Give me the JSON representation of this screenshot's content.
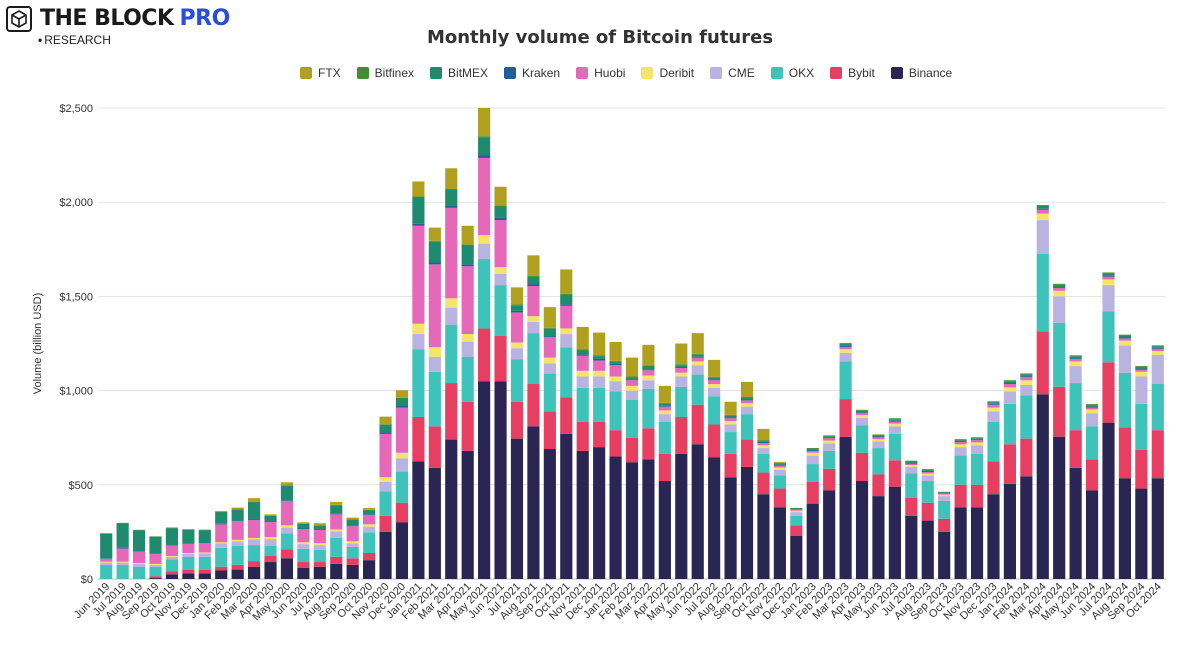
{
  "brand": {
    "name": "THE BLOCK",
    "pro": "PRO",
    "sub": "RESEARCH"
  },
  "colors": {
    "FTX": "#b0a020",
    "Bitfinex": "#3f8f2e",
    "BitMEX": "#1e8a6e",
    "Kraken": "#1f5f96",
    "Huobi": "#e668b8",
    "Deribit": "#f5e46a",
    "CME": "#b9b3e2",
    "OKX": "#3ec3bb",
    "Bybit": "#e63f62",
    "Binance": "#2b2554"
  },
  "chart_data": {
    "type": "bar",
    "stacked": true,
    "title": "Monthly volume of Bitcoin futures",
    "ylabel": "Volume (billion USD)",
    "ylim": [
      0,
      2500
    ],
    "yticks": [
      "$0",
      "$500",
      "$1,000",
      "$1,500",
      "$2,000",
      "$2,500"
    ],
    "grid": true,
    "legend_position": "top",
    "legend_order": [
      "FTX",
      "Bitfinex",
      "BitMEX",
      "Kraken",
      "Huobi",
      "Deribit",
      "CME",
      "OKX",
      "Bybit",
      "Binance"
    ],
    "categories": [
      "Jun 2019",
      "Jul 2019",
      "Aug 2019",
      "Sep 2019",
      "Oct 2019",
      "Nov 2019",
      "Dec 2019",
      "Jan 2020",
      "Feb 2020",
      "Mar 2020",
      "Apr 2020",
      "May 2020",
      "Jun 2020",
      "Jul 2020",
      "Aug 2020",
      "Sep 2020",
      "Oct 2020",
      "Nov 2020",
      "Dec 2020",
      "Jan 2021",
      "Feb 2021",
      "Mar 2021",
      "Apr 2021",
      "May 2021",
      "Jun 2021",
      "Jul 2021",
      "Aug 2021",
      "Sep 2021",
      "Oct 2021",
      "Nov 2021",
      "Dec 2021",
      "Jan 2022",
      "Feb 2022",
      "Mar 2022",
      "Apr 2022",
      "May 2022",
      "Jun 2022",
      "Jul 2022",
      "Aug 2022",
      "Sep 2022",
      "Oct 2022",
      "Nov 2022",
      "Dec 2022",
      "Jan 2023",
      "Feb 2023",
      "Mar 2023",
      "Apr 2023",
      "May 2023",
      "Jun 2023",
      "Jul 2023",
      "Aug 2023",
      "Sep 2023",
      "Oct 2023",
      "Nov 2023",
      "Dec 2023",
      "Jan 2024",
      "Feb 2024",
      "Mar 2024",
      "Apr 2024",
      "May 2024",
      "Jun 2024",
      "Jul 2024",
      "Aug 2024",
      "Sep 2024",
      "Oct 2024"
    ],
    "xtick_labels": [
      "Jun 2019",
      "Jul 2019",
      "Aug 2019",
      "Sep 2019",
      "Oct 2019",
      "Nov 2019",
      "Dec 2019",
      "Jan 2020",
      "Feb 2020",
      "Mar 2020",
      "Apr 2020",
      "May 2020",
      "Jun 2020",
      "Jul 2020",
      "Aug 2020",
      "Sep 2020",
      "Oct 2020",
      "Nov 2020",
      "Dec 2020",
      "Jan 2021",
      "Feb 2021",
      "Mar 2021",
      "Apr 2021",
      "May 2021",
      "Jun 2021",
      "Jul 2021",
      "Aug 2021",
      "Sep 2021",
      "Oct 2021",
      "Nov 2021",
      "Dec 2021",
      "Jan 2022",
      "Feb 2022",
      "Mar 2022",
      "Apr 2022",
      "May 2022",
      "Jun 2022",
      "Jul 2022",
      "Aug 2022",
      "Sep 2022",
      "Oct 2022",
      "Nov 2022",
      "Dec 2022",
      "Jan 2023",
      "Feb 2023",
      "Mar 2023",
      "Apr 2023",
      "May 2023",
      "Jun 2023",
      "Jul 2023",
      "Aug 2023",
      "Sep 2023",
      "Oct 2023",
      "Nov 2023",
      "Dec 2023",
      "Jan 2024",
      "Feb 2024",
      "Mar 2024",
      "Apr 2024",
      "May 2024",
      "Jun 2024",
      "Jul 2024",
      "Aug 2024",
      "Sep 2024",
      "Oct 2024"
    ],
    "series": [
      {
        "name": "Binance",
        "values": [
          0,
          0,
          0,
          5,
          25,
          30,
          30,
          45,
          50,
          65,
          90,
          110,
          60,
          65,
          80,
          75,
          100,
          250,
          300,
          625,
          590,
          740,
          680,
          1050,
          1050,
          745,
          810,
          690,
          770,
          680,
          700,
          650,
          620,
          635,
          520,
          665,
          715,
          645,
          540,
          595,
          450,
          380,
          230,
          400,
          470,
          755,
          520,
          440,
          490,
          335,
          310,
          250,
          380,
          380,
          450,
          505,
          545,
          980,
          755,
          590,
          470,
          830,
          535,
          480,
          535
        ]
      },
      {
        "name": "Bybit",
        "values": [
          0,
          0,
          0,
          10,
          15,
          18,
          18,
          20,
          25,
          30,
          32,
          48,
          30,
          25,
          38,
          35,
          38,
          85,
          105,
          235,
          220,
          300,
          260,
          280,
          240,
          195,
          225,
          200,
          195,
          155,
          135,
          140,
          130,
          165,
          145,
          195,
          210,
          175,
          125,
          145,
          115,
          100,
          55,
          115,
          115,
          200,
          150,
          115,
          140,
          95,
          95,
          70,
          120,
          120,
          175,
          210,
          200,
          335,
          265,
          200,
          165,
          320,
          270,
          205,
          255
        ]
      },
      {
        "name": "OKX",
        "values": [
          75,
          75,
          65,
          50,
          65,
          70,
          70,
          100,
          100,
          85,
          55,
          85,
          70,
          65,
          100,
          60,
          110,
          130,
          165,
          360,
          290,
          310,
          240,
          370,
          270,
          225,
          270,
          200,
          265,
          180,
          180,
          205,
          200,
          210,
          170,
          160,
          160,
          150,
          115,
          135,
          100,
          70,
          50,
          95,
          95,
          200,
          145,
          140,
          140,
          130,
          115,
          95,
          155,
          165,
          210,
          215,
          230,
          410,
          340,
          250,
          175,
          270,
          290,
          245,
          245
        ]
      },
      {
        "name": "CME",
        "values": [
          12,
          12,
          15,
          10,
          12,
          15,
          18,
          25,
          25,
          30,
          35,
          30,
          25,
          25,
          35,
          20,
          30,
          50,
          70,
          80,
          80,
          90,
          80,
          80,
          60,
          60,
          60,
          55,
          70,
          60,
          60,
          55,
          50,
          45,
          40,
          55,
          50,
          45,
          40,
          40,
          30,
          30,
          20,
          45,
          40,
          45,
          40,
          35,
          40,
          35,
          30,
          25,
          45,
          45,
          55,
          65,
          55,
          180,
          140,
          90,
          70,
          140,
          145,
          145,
          155
        ]
      },
      {
        "name": "Deribit",
        "values": [
          5,
          5,
          5,
          5,
          5,
          5,
          5,
          5,
          8,
          8,
          10,
          12,
          10,
          10,
          10,
          10,
          12,
          25,
          30,
          55,
          50,
          50,
          40,
          45,
          35,
          30,
          30,
          30,
          30,
          30,
          30,
          25,
          25,
          25,
          20,
          20,
          20,
          20,
          18,
          18,
          15,
          12,
          8,
          15,
          15,
          20,
          15,
          12,
          15,
          10,
          10,
          8,
          15,
          15,
          20,
          22,
          25,
          35,
          30,
          25,
          20,
          30,
          25,
          25,
          20
        ]
      },
      {
        "name": "Huobi",
        "values": [
          15,
          70,
          60,
          55,
          55,
          50,
          50,
          95,
          100,
          95,
          80,
          130,
          70,
          70,
          80,
          80,
          50,
          230,
          240,
          520,
          440,
          480,
          360,
          410,
          250,
          160,
          160,
          110,
          120,
          80,
          55,
          60,
          30,
          28,
          20,
          25,
          20,
          20,
          15,
          15,
          12,
          10,
          5,
          10,
          12,
          12,
          10,
          10,
          10,
          8,
          8,
          5,
          12,
          12,
          15,
          18,
          18,
          20,
          15,
          12,
          10,
          15,
          12,
          12,
          12
        ]
      },
      {
        "name": "Kraken",
        "values": [
          3,
          3,
          3,
          3,
          3,
          3,
          3,
          3,
          3,
          3,
          3,
          4,
          3,
          3,
          3,
          3,
          4,
          8,
          8,
          10,
          10,
          10,
          10,
          15,
          12,
          8,
          8,
          8,
          8,
          8,
          8,
          8,
          5,
          5,
          5,
          5,
          5,
          5,
          5,
          5,
          5,
          5,
          3,
          5,
          5,
          5,
          5,
          5,
          5,
          5,
          5,
          3,
          5,
          5,
          5,
          5,
          5,
          5,
          5,
          5,
          5,
          5,
          5,
          5,
          5
        ]
      },
      {
        "name": "BitMEX",
        "values": [
          130,
          130,
          110,
          85,
          90,
          70,
          65,
          60,
          55,
          90,
          30,
          75,
          25,
          20,
          45,
          30,
          20,
          40,
          40,
          140,
          110,
          85,
          100,
          95,
          60,
          30,
          40,
          35,
          50,
          20,
          15,
          10,
          10,
          15,
          10,
          10,
          10,
          8,
          8,
          8,
          5,
          5,
          3,
          5,
          5,
          10,
          8,
          5,
          8,
          5,
          5,
          4,
          5,
          5,
          8,
          10,
          8,
          15,
          12,
          10,
          8,
          12,
          10,
          8,
          8
        ]
      },
      {
        "name": "Bitfinex",
        "values": [
          3,
          3,
          3,
          3,
          3,
          3,
          3,
          3,
          3,
          3,
          3,
          4,
          3,
          3,
          3,
          3,
          3,
          4,
          4,
          5,
          5,
          5,
          5,
          5,
          5,
          5,
          5,
          5,
          5,
          5,
          5,
          5,
          5,
          5,
          5,
          5,
          5,
          5,
          5,
          5,
          5,
          5,
          3,
          5,
          5,
          5,
          5,
          5,
          5,
          5,
          5,
          3,
          5,
          5,
          5,
          5,
          5,
          5,
          5,
          5,
          5,
          5,
          5,
          5,
          5
        ]
      },
      {
        "name": "FTX",
        "values": [
          0,
          0,
          0,
          0,
          0,
          0,
          0,
          5,
          10,
          20,
          5,
          15,
          5,
          10,
          15,
          10,
          10,
          40,
          40,
          80,
          70,
          110,
          100,
          150,
          100,
          90,
          110,
          110,
          130,
          120,
          120,
          100,
          100,
          110,
          90,
          110,
          110,
          90,
          70,
          80,
          60,
          5,
          0,
          0,
          0,
          0,
          0,
          0,
          0,
          0,
          0,
          0,
          0,
          0,
          0,
          0,
          0,
          0,
          0,
          0,
          0,
          0,
          0,
          0,
          0
        ]
      }
    ]
  }
}
